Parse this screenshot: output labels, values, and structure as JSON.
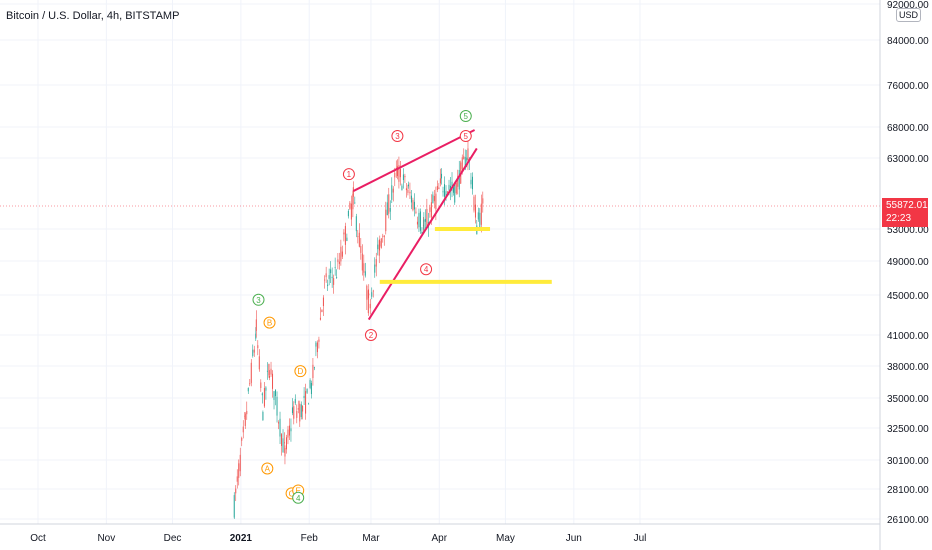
{
  "header": {
    "title": "Bitcoin / U.S. Dollar, 4h, BITSTAMP"
  },
  "currency": "USD",
  "last_price": {
    "value": "55872.01",
    "countdown": "22:23",
    "color": "#f23645"
  },
  "colors": {
    "up": "#26a69a",
    "down": "#ef5350",
    "trendline": "#e91e63",
    "zone": "#ffeb3b",
    "wave_red": "#f23645",
    "wave_green": "#4caf50",
    "wave_orange": "#ff9800"
  },
  "chart_data": {
    "type": "line",
    "title": "Bitcoin / U.S. Dollar, 4h, BITSTAMP",
    "xlabel": "",
    "ylabel": "",
    "x_ticks": [
      "Oct",
      "Nov",
      "Dec",
      "2021",
      "Feb",
      "Mar",
      "Apr",
      "May",
      "Jun",
      "Jul"
    ],
    "y_ticks": [
      "92000.00",
      "84000.00",
      "76000.00",
      "68000.00",
      "63000.00",
      "55872.01",
      "53000.00",
      "49000.00",
      "45000.00",
      "41000.00",
      "38000.00",
      "35000.00",
      "32500.00",
      "30100.00",
      "28100.00",
      "26100.00"
    ],
    "ylim": [
      26100,
      92000
    ],
    "y_scale": "log",
    "series": [
      {
        "x": [
          "2020-12-29",
          "2021-01-03",
          "2021-01-08",
          "2021-01-11",
          "2021-01-14",
          "2021-01-21",
          "2021-01-25",
          "2021-01-29",
          "2021-02-02",
          "2021-02-08",
          "2021-02-14",
          "2021-02-21",
          "2021-02-28",
          "2021-03-05",
          "2021-03-13",
          "2021-03-18",
          "2021-03-25",
          "2021-04-02",
          "2021-04-08",
          "2021-04-14",
          "2021-04-18",
          "2021-04-21"
        ],
        "values": [
          27000,
          33000,
          41500,
          34000,
          38000,
          30500,
          34000,
          34000,
          36000,
          46000,
          48000,
          57000,
          44000,
          51000,
          61000,
          58000,
          53000,
          59000,
          58000,
          64000,
          53500,
          55872
        ]
      }
    ],
    "waves": [
      {
        "label": "3",
        "color": "green",
        "x": "2021-01-09",
        "y": 44500
      },
      {
        "label": "B",
        "color": "orange",
        "x": "2021-01-14",
        "y": 42200
      },
      {
        "label": "D",
        "color": "orange",
        "x": "2021-01-28",
        "y": 37500
      },
      {
        "label": "A",
        "color": "orange",
        "x": "2021-01-13",
        "y": 29500
      },
      {
        "label": "C",
        "color": "orange",
        "x": "2021-01-24",
        "y": 27800
      },
      {
        "label": "E",
        "color": "orange",
        "x": "2021-01-27",
        "y": 28000
      },
      {
        "label": "4",
        "color": "green",
        "x": "2021-01-27",
        "y": 27500
      },
      {
        "label": "1",
        "color": "red",
        "x": "2021-02-19",
        "y": 60500
      },
      {
        "label": "2",
        "color": "red",
        "x": "2021-03-01",
        "y": 41000
      },
      {
        "label": "3",
        "color": "red",
        "x": "2021-03-13",
        "y": 66500
      },
      {
        "label": "4",
        "color": "red",
        "x": "2021-03-26",
        "y": 48000
      },
      {
        "label": "5",
        "color": "red",
        "x": "2021-04-13",
        "y": 66500
      },
      {
        "label": "5",
        "color": "green",
        "x": "2021-04-13",
        "y": 70000
      }
    ],
    "trendlines": [
      {
        "x1": "2021-02-21",
        "y1": 58000,
        "x2": "2021-04-17",
        "y2": 67500
      },
      {
        "x1": "2021-02-28",
        "y1": 42500,
        "x2": "2021-04-18",
        "y2": 64500
      }
    ],
    "zones": [
      {
        "x1": "2021-03-30",
        "x2": "2021-04-24",
        "y": 53000
      },
      {
        "x1": "2021-03-05",
        "x2": "2021-05-22",
        "y": 46500
      }
    ]
  }
}
